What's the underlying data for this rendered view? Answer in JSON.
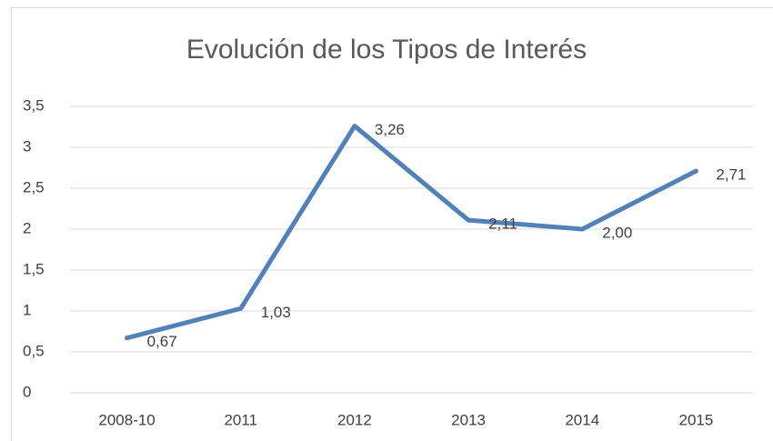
{
  "chart_data": {
    "type": "line",
    "title": "Evolución de los Tipos de Interés",
    "categories": [
      "2008-10",
      "2011",
      "2012",
      "2013",
      "2014",
      "2015"
    ],
    "series": [
      {
        "name": "Tipos de Interés",
        "color": "#4f81bd",
        "values": [
          0.67,
          1.03,
          3.26,
          2.11,
          2.0,
          2.71
        ],
        "value_labels": [
          "0,67",
          "1,03",
          "3,26",
          "2,11",
          "2,00",
          "2,71"
        ]
      }
    ],
    "ylim": [
      0,
      3.5
    ],
    "yticks": [
      0,
      {
        "value": 0.5,
        "label": "0,5"
      },
      1,
      {
        "value": 1.5,
        "label": "1,5"
      },
      2,
      {
        "value": 2.5,
        "label": "2,5"
      },
      3,
      {
        "value": 3.5,
        "label": "3,5"
      }
    ],
    "grid": true,
    "legend": false
  }
}
